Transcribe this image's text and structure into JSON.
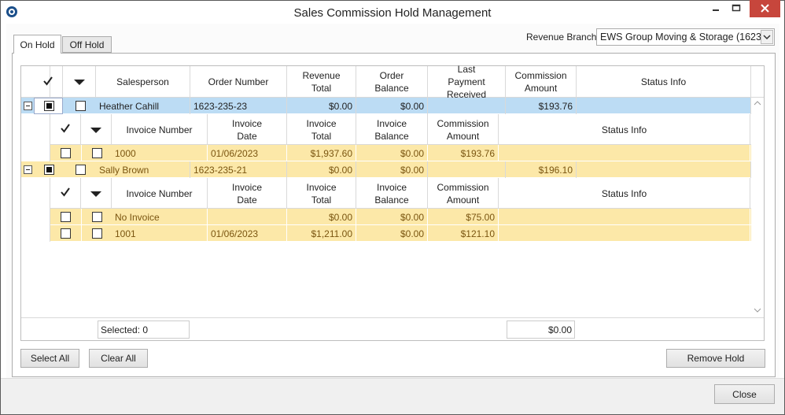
{
  "window": {
    "title": "Sales Commission Hold Management"
  },
  "tabs": [
    "On Hold",
    "Off Hold"
  ],
  "branch": {
    "label": "Revenue Branch:",
    "value": "EWS Group Moving & Storage (1623)"
  },
  "grid": {
    "columns": [
      "Salesperson",
      "Order Number",
      "Revenue Total",
      "Order Balance",
      "Last Payment Received",
      "Commission Amount",
      "Status Info"
    ],
    "invoice_columns": [
      "Invoice Number",
      "Invoice Date",
      "Invoice Total",
      "Invoice Balance",
      "Commission Amount",
      "Status Info"
    ],
    "orders": [
      {
        "cells": [
          "Heather Cahill",
          "1623-235-23",
          "$0.00",
          "$0.00",
          null,
          "$193.76",
          null
        ],
        "invoices": [
          [
            "1000",
            "01/06/2023",
            "$1,937.60",
            "$0.00",
            "$193.76",
            null
          ]
        ]
      },
      {
        "cells": [
          "Sally Brown",
          "1623-235-21",
          "$0.00",
          "$0.00",
          null,
          "$196.10",
          null
        ],
        "invoices": [
          [
            "No Invoice",
            null,
            "$0.00",
            "$0.00",
            "$75.00",
            null
          ],
          [
            "1001",
            "01/06/2023",
            "$1,211.00",
            "$0.00",
            "$121.10",
            null
          ]
        ]
      }
    ],
    "selected": "Selected: 0",
    "total": "$0.00"
  },
  "buttons": {
    "select_all": "Select All",
    "clear_all": "Clear All",
    "remove_hold": "Remove Hold",
    "close": "Close"
  }
}
